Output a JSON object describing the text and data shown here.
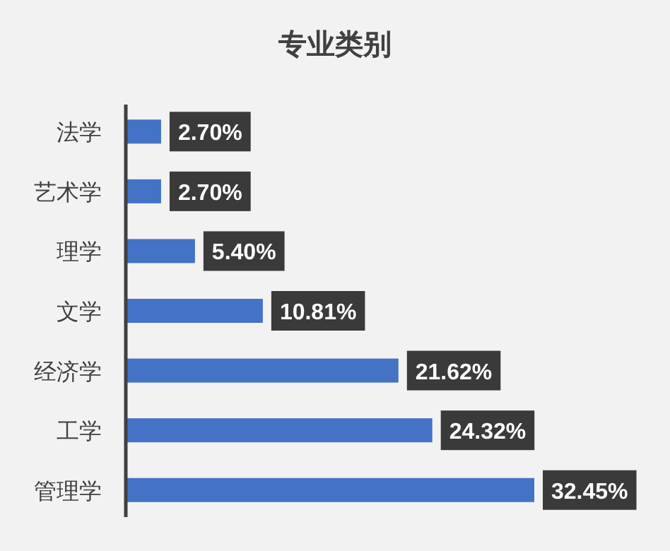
{
  "chart_data": {
    "type": "bar",
    "orientation": "horizontal",
    "title": "专业类别",
    "categories": [
      "法学",
      "艺术学",
      "理学",
      "文学",
      "经济学",
      "工学",
      "管理学"
    ],
    "values": [
      2.7,
      2.7,
      5.4,
      10.81,
      21.62,
      24.32,
      32.45
    ],
    "value_labels": [
      "2.70%",
      "2.70%",
      "5.40%",
      "10.81%",
      "21.62%",
      "24.32%",
      "32.45%"
    ],
    "color": "#4472c4"
  }
}
